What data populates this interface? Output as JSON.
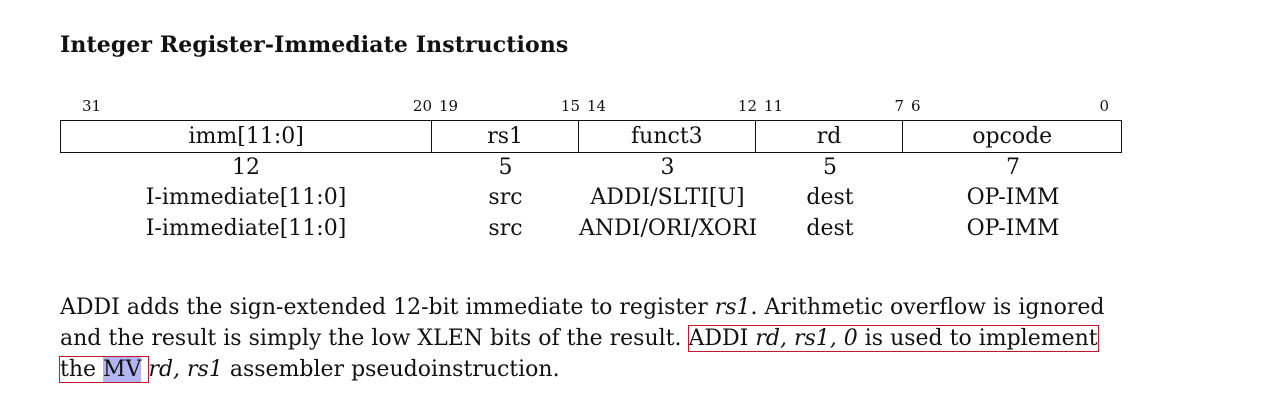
{
  "heading": "Integer Register-Immediate Instructions",
  "bit_numbers": [
    {
      "text": "31",
      "x": 0
    },
    {
      "text": "20",
      "x": 1
    },
    {
      "text": "19",
      "x": 2
    },
    {
      "text": "15",
      "x": 3
    },
    {
      "text": "14",
      "x": 4
    },
    {
      "text": "12",
      "x": 5
    },
    {
      "text": "11",
      "x": 6
    },
    {
      "text": "7",
      "x": 7
    },
    {
      "text": "6",
      "x": 8
    },
    {
      "text": "0",
      "x": 9
    }
  ],
  "fields": [
    "imm[11:0]",
    "rs1",
    "funct3",
    "rd",
    "opcode"
  ],
  "widths": [
    "12",
    "5",
    "3",
    "5",
    "7"
  ],
  "rows": [
    [
      "I-immediate[11:0]",
      "src",
      "ADDI/SLTI[U]",
      "dest",
      "OP-IMM"
    ],
    [
      "I-immediate[11:0]",
      "src",
      "ANDI/ORI/XORI",
      "dest",
      "OP-IMM"
    ]
  ],
  "paragraph": {
    "p1": "ADDI adds the sign-extended 12-bit immediate to register ",
    "p1_em": "rs1",
    "p2": ". Arithmetic overflow is ignored and the result is simply the low XLEN bits of the result. ",
    "hl_text1": "ADDI ",
    "hl_em": "rd, rs1, 0",
    "hl_text2": " is used to implement the ",
    "selected": "MV",
    "p3_em": "rd, rs1",
    "p3": " assembler pseudoinstruction."
  }
}
